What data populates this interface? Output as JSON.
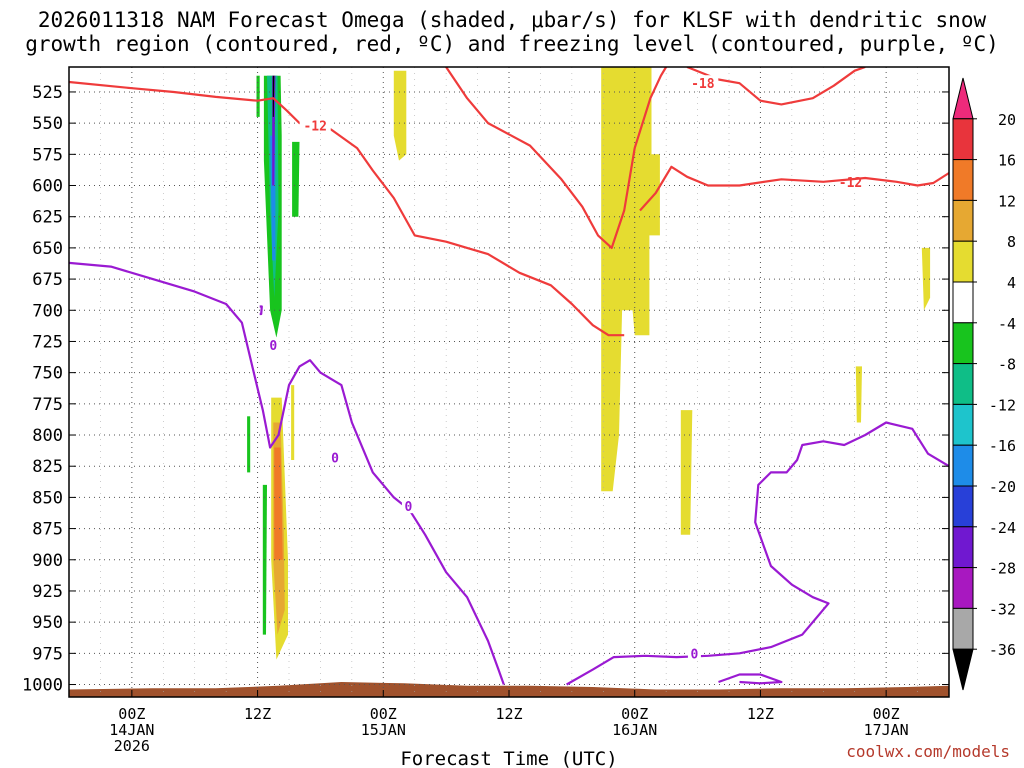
{
  "title": "2026011318 NAM Forecast Omega (shaded, μbar/s) for KLSF with dendritic snow\ngrowth region (contoured, red, ºC) and freezing level (contoured, purple, ºC)",
  "credit": "coolwx.com/models",
  "chart_data": {
    "type": "heatmap",
    "xlabel": "Forecast Time (UTC)",
    "ylabel": "",
    "x_unit": "hours since 2026-01-13 18Z",
    "xlim": [
      0,
      84
    ],
    "ylim": [
      1010,
      505
    ],
    "y_ticks": [
      525,
      550,
      575,
      600,
      625,
      650,
      675,
      700,
      725,
      750,
      775,
      800,
      825,
      850,
      875,
      900,
      925,
      950,
      975,
      1000
    ],
    "x_ticks": [
      {
        "x": 6,
        "lines": [
          "00Z",
          "14JAN",
          "2026"
        ]
      },
      {
        "x": 18,
        "lines": [
          "12Z"
        ]
      },
      {
        "x": 30,
        "lines": [
          "00Z",
          "15JAN"
        ]
      },
      {
        "x": 42,
        "lines": [
          "12Z"
        ]
      },
      {
        "x": 54,
        "lines": [
          "00Z",
          "16JAN"
        ]
      },
      {
        "x": 66,
        "lines": [
          "12Z"
        ]
      },
      {
        "x": 78,
        "lines": [
          "00Z",
          "17JAN"
        ]
      }
    ],
    "colorbar": {
      "labels": [
        "20",
        "16",
        "12",
        "8",
        "4",
        "-4",
        "-8",
        "-12",
        "-16",
        "-20",
        "-24",
        "-28",
        "-32",
        "-36"
      ],
      "bins": [
        {
          "color": "#ee2a7b"
        },
        {
          "color": "#e8343c"
        },
        {
          "color": "#f07a28"
        },
        {
          "color": "#e6a832"
        },
        {
          "color": "#e5dc30"
        },
        {
          "color": "#ffffff"
        },
        {
          "color": "#18c41e"
        },
        {
          "color": "#0fbe87"
        },
        {
          "color": "#1ec4cc"
        },
        {
          "color": "#1e8ce8"
        },
        {
          "color": "#2840d8"
        },
        {
          "color": "#7018d0"
        },
        {
          "color": "#a818c0"
        },
        {
          "color": "#a8a8a8"
        },
        {
          "color": "#000000"
        }
      ]
    },
    "shading": [
      {
        "color": "#18c41e",
        "pts": [
          [
            17.9,
            512
          ],
          [
            18.2,
            512
          ],
          [
            18.2,
            545
          ],
          [
            17.9,
            545
          ]
        ]
      },
      {
        "color": "#18c41e",
        "pts": [
          [
            18.6,
            512
          ],
          [
            20.2,
            512
          ],
          [
            20.3,
            560
          ],
          [
            20.3,
            640
          ],
          [
            20.3,
            700
          ],
          [
            19.8,
            722
          ],
          [
            19.2,
            700
          ],
          [
            18.9,
            640
          ],
          [
            18.6,
            580
          ]
        ]
      },
      {
        "color": "#0fbe87",
        "pts": [
          [
            18.9,
            512
          ],
          [
            19.9,
            512
          ],
          [
            20.0,
            620
          ],
          [
            19.6,
            690
          ],
          [
            19.2,
            620
          ]
        ]
      },
      {
        "color": "#1e8ce8",
        "pts": [
          [
            19.2,
            560
          ],
          [
            19.7,
            560
          ],
          [
            19.7,
            660
          ],
          [
            19.4,
            660
          ]
        ]
      },
      {
        "color": "#7018d0",
        "pts": [
          [
            19.4,
            512
          ],
          [
            19.7,
            512
          ],
          [
            19.6,
            600
          ],
          [
            19.4,
            600
          ]
        ]
      },
      {
        "color": "#000000",
        "pts": [
          [
            19.45,
            512
          ],
          [
            19.6,
            512
          ],
          [
            19.55,
            545
          ],
          [
            19.45,
            545
          ]
        ]
      },
      {
        "color": "#18c41e",
        "pts": [
          [
            21.3,
            565
          ],
          [
            22.0,
            565
          ],
          [
            21.9,
            625
          ],
          [
            21.3,
            625
          ]
        ]
      },
      {
        "color": "#e5dc30",
        "pts": [
          [
            19.3,
            770
          ],
          [
            20.3,
            770
          ],
          [
            20.9,
            900
          ],
          [
            20.9,
            960
          ],
          [
            19.8,
            980
          ],
          [
            19.3,
            900
          ]
        ]
      },
      {
        "color": "#e6a832",
        "pts": [
          [
            19.5,
            790
          ],
          [
            20.2,
            790
          ],
          [
            20.5,
            880
          ],
          [
            20.6,
            940
          ],
          [
            19.9,
            960
          ],
          [
            19.5,
            900
          ]
        ]
      },
      {
        "color": "#f07a28",
        "pts": [
          [
            19.6,
            810
          ],
          [
            20.2,
            810
          ],
          [
            20.4,
            900
          ],
          [
            19.6,
            900
          ]
        ]
      },
      {
        "color": "#18c41e",
        "pts": [
          [
            18.5,
            840
          ],
          [
            18.9,
            840
          ],
          [
            18.8,
            960
          ],
          [
            18.5,
            960
          ]
        ]
      },
      {
        "color": "#18c41e",
        "pts": [
          [
            17.0,
            785
          ],
          [
            17.3,
            785
          ],
          [
            17.3,
            830
          ],
          [
            17.0,
            830
          ]
        ]
      },
      {
        "color": "#e5dc30",
        "pts": [
          [
            21.2,
            760
          ],
          [
            21.5,
            760
          ],
          [
            21.5,
            820
          ],
          [
            21.2,
            820
          ]
        ]
      },
      {
        "color": "#e5dc30",
        "pts": [
          [
            31.0,
            508
          ],
          [
            32.2,
            508
          ],
          [
            32.2,
            575
          ],
          [
            31.5,
            580
          ],
          [
            31.0,
            560
          ]
        ]
      },
      {
        "color": "#e5dc30",
        "pts": [
          [
            50.8,
            505
          ],
          [
            55.6,
            505
          ],
          [
            55.6,
            575
          ],
          [
            56.4,
            575
          ],
          [
            56.4,
            640
          ],
          [
            55.4,
            640
          ],
          [
            55.4,
            720
          ],
          [
            54.0,
            720
          ],
          [
            53.8,
            700
          ],
          [
            52.8,
            700
          ],
          [
            52.5,
            800
          ],
          [
            51.9,
            845
          ],
          [
            50.8,
            845
          ]
        ]
      },
      {
        "color": "#e5dc30",
        "pts": [
          [
            58.4,
            780
          ],
          [
            59.5,
            780
          ],
          [
            59.3,
            880
          ],
          [
            58.4,
            880
          ]
        ]
      },
      {
        "color": "#e5dc30",
        "pts": [
          [
            81.4,
            650
          ],
          [
            82.2,
            650
          ],
          [
            82.2,
            690
          ],
          [
            81.6,
            700
          ]
        ]
      },
      {
        "color": "#e5dc30",
        "pts": [
          [
            75.1,
            745
          ],
          [
            75.7,
            745
          ],
          [
            75.6,
            790
          ],
          [
            75.2,
            790
          ]
        ]
      }
    ],
    "ground": {
      "color": "#a0522d",
      "tops": [
        [
          0,
          1004
        ],
        [
          8,
          1003
        ],
        [
          14,
          1003
        ],
        [
          20,
          1001
        ],
        [
          26,
          998
        ],
        [
          32,
          999
        ],
        [
          38,
          1001
        ],
        [
          44,
          1001
        ],
        [
          50,
          1002
        ],
        [
          56,
          1004
        ],
        [
          62,
          1004
        ],
        [
          68,
          1003
        ],
        [
          74,
          1003
        ],
        [
          80,
          1002
        ],
        [
          84,
          1001
        ]
      ]
    },
    "contours": [
      {
        "value": "-12",
        "color": "#ef3b3b",
        "label_at": [
          23.5,
          552
        ],
        "points": [
          [
            0,
            517
          ],
          [
            6,
            522
          ],
          [
            10,
            525
          ],
          [
            14,
            529
          ],
          [
            18,
            532
          ],
          [
            19.5,
            530
          ],
          [
            20.8,
            540
          ],
          [
            22,
            550
          ],
          [
            25,
            555
          ],
          [
            27.5,
            570
          ],
          [
            29,
            588
          ],
          [
            31,
            610
          ],
          [
            33,
            640
          ],
          [
            36,
            645
          ],
          [
            38,
            650
          ],
          [
            40,
            655
          ],
          [
            43,
            670
          ],
          [
            46,
            680
          ],
          [
            48,
            695
          ],
          [
            50,
            712
          ],
          [
            51.5,
            720
          ],
          [
            53,
            720
          ]
        ]
      },
      {
        "value": "-12",
        "color": "#ef3b3b",
        "label_at": [
          74.6,
          597
        ],
        "points": [
          [
            36,
            505
          ],
          [
            38,
            530
          ],
          [
            40,
            550
          ],
          [
            44,
            568
          ],
          [
            47,
            595
          ],
          [
            49,
            617
          ],
          [
            50.5,
            640
          ],
          [
            51.8,
            650
          ],
          [
            53,
            620
          ],
          [
            54,
            570
          ],
          [
            55.5,
            530
          ],
          [
            56.5,
            512
          ],
          [
            57,
            505
          ]
        ]
      },
      {
        "value": "-12",
        "color": "#ef3b3b",
        "label_at": [
          null,
          null
        ],
        "points": [
          [
            54.5,
            620
          ],
          [
            56,
            606
          ],
          [
            57.5,
            585
          ],
          [
            59,
            593
          ],
          [
            61,
            600
          ],
          [
            64,
            600
          ],
          [
            68,
            595
          ],
          [
            72,
            597
          ],
          [
            76,
            594
          ],
          [
            79,
            597
          ],
          [
            81,
            600
          ],
          [
            82.5,
            598
          ],
          [
            84,
            590
          ]
        ]
      },
      {
        "value": "-18",
        "color": "#ef3b3b",
        "label_at": [
          60.5,
          518
        ],
        "points": [
          [
            59,
            505
          ],
          [
            62,
            515
          ],
          [
            64,
            518
          ],
          [
            66,
            532
          ],
          [
            68,
            535
          ],
          [
            71,
            530
          ],
          [
            73,
            520
          ],
          [
            75,
            508
          ],
          [
            76,
            505
          ]
        ]
      },
      {
        "value": "0",
        "color": "#9a1ad2",
        "label_at": [
          32.4,
          857
        ],
        "points": [
          [
            0,
            662
          ],
          [
            4,
            665
          ],
          [
            8,
            675
          ],
          [
            12,
            685
          ],
          [
            15,
            695
          ],
          [
            16.5,
            710
          ],
          [
            17.5,
            745
          ],
          [
            18.5,
            780
          ],
          [
            19.2,
            810
          ],
          [
            20,
            800
          ],
          [
            21,
            760
          ],
          [
            22,
            745
          ],
          [
            23,
            740
          ],
          [
            24,
            750
          ],
          [
            26,
            760
          ],
          [
            27,
            790
          ],
          [
            29,
            830
          ],
          [
            31,
            850
          ],
          [
            32.5,
            860
          ],
          [
            34,
            880
          ],
          [
            36,
            910
          ],
          [
            38,
            930
          ],
          [
            40,
            965
          ],
          [
            41,
            988
          ],
          [
            41.5,
            1000
          ]
        ]
      },
      {
        "value": "0",
        "color": "#9a1ad2",
        "label_at": [
          59.7,
          975
        ],
        "points": [
          [
            47.5,
            1000
          ],
          [
            50,
            988
          ],
          [
            52,
            978
          ],
          [
            55,
            977
          ],
          [
            58,
            978
          ],
          [
            61,
            977
          ],
          [
            64,
            975
          ],
          [
            67,
            970
          ],
          [
            70,
            960
          ],
          [
            71.5,
            945
          ],
          [
            72.5,
            935
          ],
          [
            71,
            930
          ],
          [
            69,
            920
          ],
          [
            67,
            905
          ],
          [
            65.5,
            870
          ],
          [
            65.8,
            840
          ],
          [
            67,
            830
          ],
          [
            68.5,
            830
          ],
          [
            69.5,
            820
          ],
          [
            70,
            808
          ],
          [
            72,
            805
          ],
          [
            74,
            808
          ],
          [
            76,
            800
          ],
          [
            78,
            790
          ],
          [
            80.5,
            795
          ],
          [
            82,
            815
          ],
          [
            84,
            825
          ]
        ]
      },
      {
        "value": "0",
        "color": "#9a1ad2",
        "label_at": [
          null,
          null
        ],
        "points": [
          [
            62,
            998
          ],
          [
            64,
            992
          ],
          [
            66,
            992
          ],
          [
            68,
            998
          ],
          [
            66,
            999
          ],
          [
            64,
            998
          ]
        ]
      },
      {
        "value": "0",
        "color": "#9a1ad2",
        "label_at": [
          19.5,
          728
        ],
        "points": [
          [
            19.4,
            725
          ],
          [
            19.7,
            725
          ],
          [
            19.65,
            730
          ],
          [
            19.45,
            730
          ]
        ]
      },
      {
        "value": "0",
        "color": "#9a1ad2",
        "label_at": [
          null,
          null
        ],
        "points": [
          [
            18.2,
            697
          ],
          [
            18.4,
            697
          ],
          [
            18.35,
            703
          ],
          [
            18.2,
            703
          ]
        ]
      },
      {
        "value": "0",
        "color": "#9a1ad2",
        "label_at": [
          25.4,
          818
        ],
        "points": [
          [
            25.3,
            815
          ],
          [
            25.5,
            815
          ],
          [
            25.45,
            822
          ],
          [
            25.3,
            822
          ]
        ]
      }
    ]
  }
}
